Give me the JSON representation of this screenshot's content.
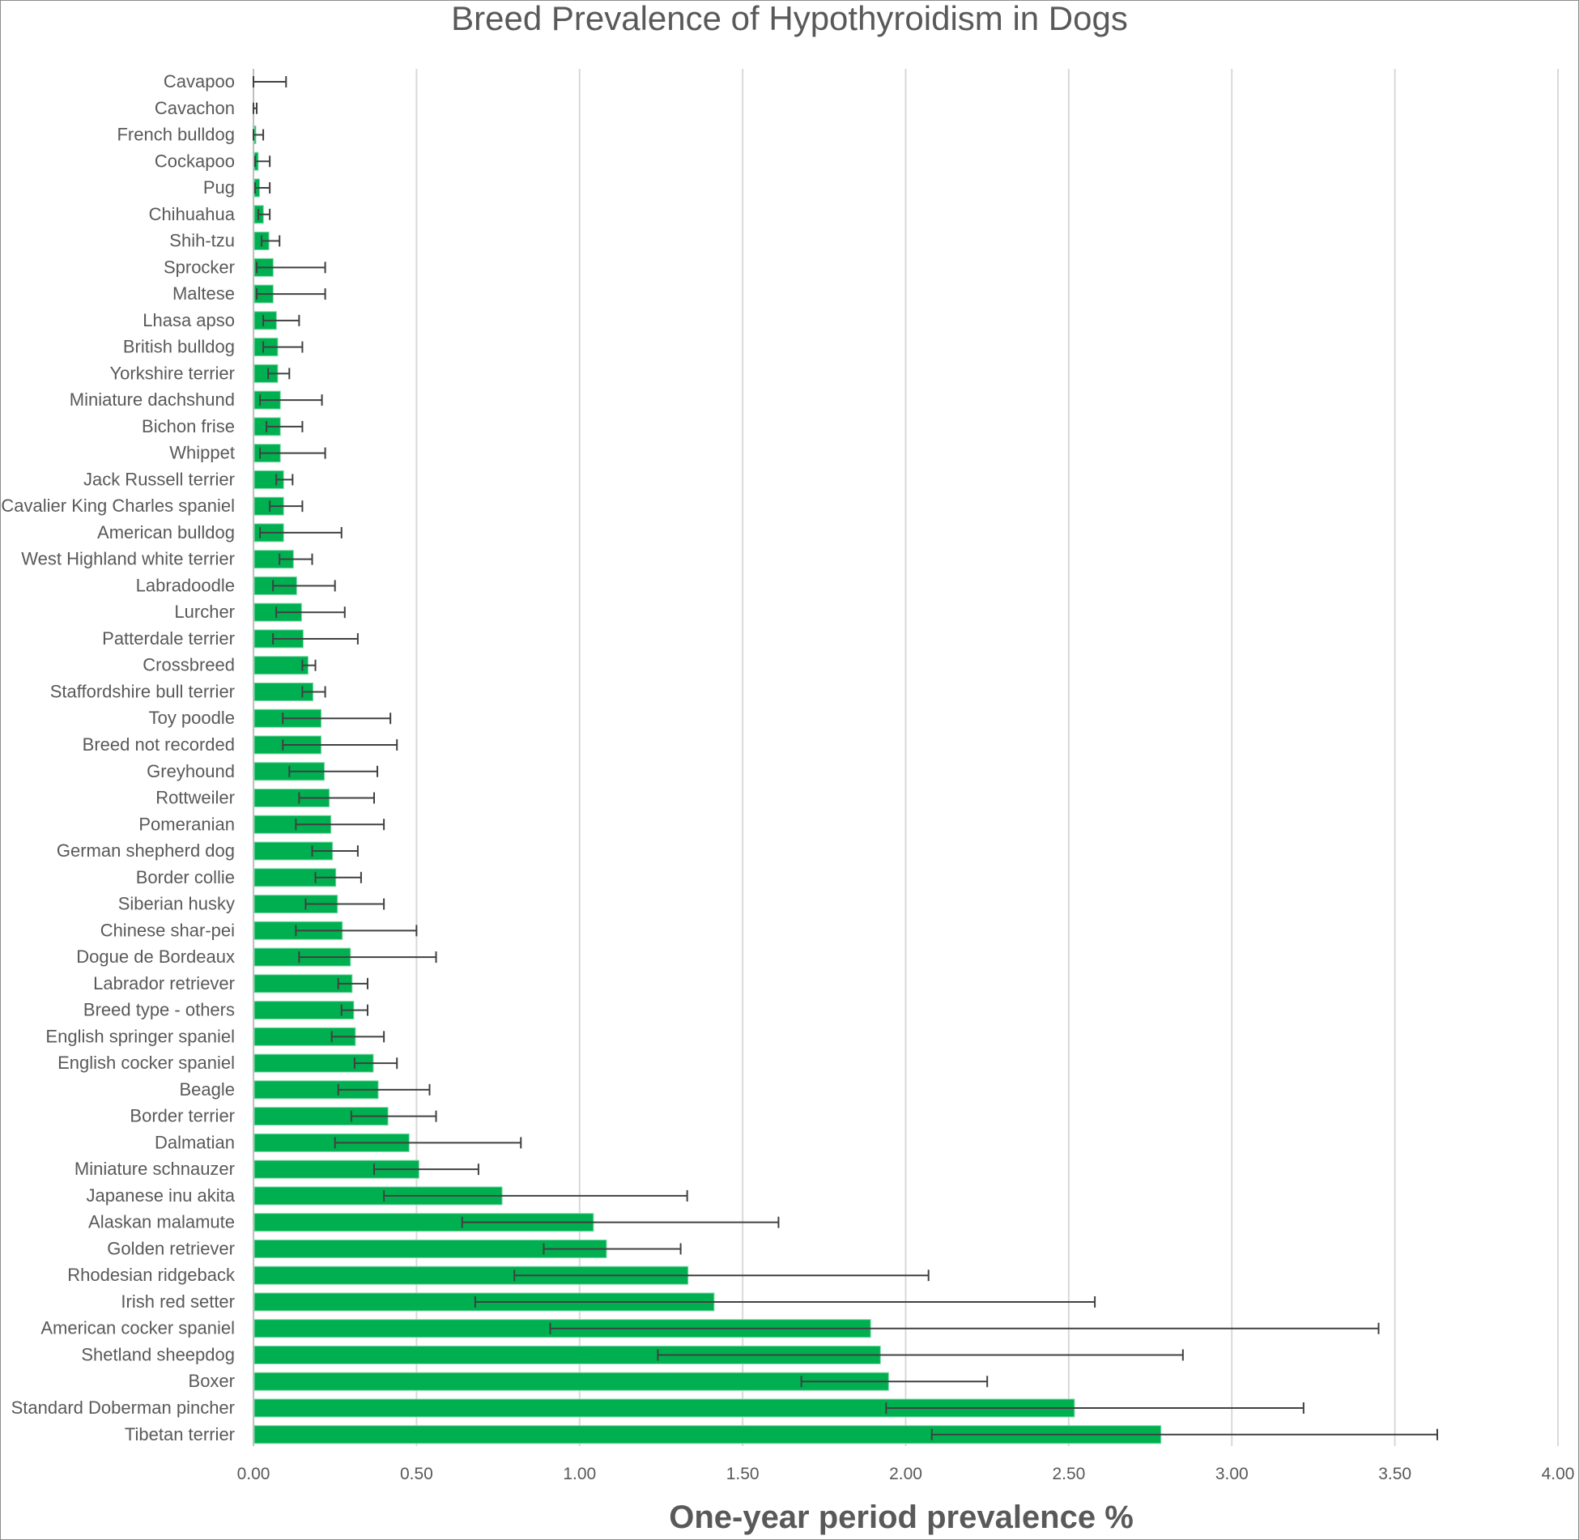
{
  "chart_data": {
    "type": "bar",
    "orientation": "horizontal",
    "title": "Breed Prevalence of Hypothyroidism in Dogs",
    "xlabel": "One-year period prevalence %",
    "ylabel": "",
    "xlim": [
      0,
      4
    ],
    "x_ticks": [
      "0.00",
      "0.50",
      "1.00",
      "1.50",
      "2.00",
      "2.50",
      "3.00",
      "3.50",
      "4.00"
    ],
    "grid": "vertical",
    "bar_color": "#00b050",
    "error_bar_color": "#404040",
    "categories": [
      "Cavapoo",
      "Cavachon",
      "French bulldog",
      "Cockapoo",
      "Pug",
      "Chihuahua",
      "Shih-tzu",
      "Sprocker",
      "Maltese",
      "Lhasa apso",
      "British bulldog",
      "Yorkshire terrier",
      "Miniature dachshund",
      "Bichon frise",
      "Whippet",
      "Jack Russell terrier",
      "Cavalier King Charles spaniel",
      "American bulldog",
      "West Highland white terrier",
      "Labradoodle",
      "Lurcher",
      "Patterdale terrier",
      "Crossbreed",
      "Staffordshire bull terrier",
      "Toy poodle",
      "Breed not recorded",
      "Greyhound",
      "Rottweiler",
      "Pomeranian",
      "German shepherd dog",
      "Border collie",
      "Siberian husky",
      "Chinese shar-pei",
      "Dogue de Bordeaux",
      "Labrador retriever",
      "Breed type - others",
      "English springer spaniel",
      "English cocker spaniel",
      "Beagle",
      "Border terrier",
      "Dalmatian",
      "Miniature schnauzer",
      "Japanese inu akita",
      "Alaskan malamute",
      "Golden retriever",
      "Rhodesian ridgeback",
      "Irish red setter",
      "American cocker spaniel",
      "Shetland sheepdog",
      "Boxer",
      "Standard Doberman pincher",
      "Tibetan terrier"
    ],
    "values": [
      0.0,
      0.0,
      0.005,
      0.012,
      0.016,
      0.028,
      0.045,
      0.058,
      0.058,
      0.068,
      0.072,
      0.072,
      0.08,
      0.08,
      0.08,
      0.09,
      0.09,
      0.09,
      0.12,
      0.13,
      0.145,
      0.15,
      0.165,
      0.18,
      0.205,
      0.205,
      0.215,
      0.23,
      0.235,
      0.24,
      0.25,
      0.255,
      0.27,
      0.295,
      0.3,
      0.305,
      0.31,
      0.365,
      0.38,
      0.41,
      0.475,
      0.505,
      0.76,
      1.04,
      1.08,
      1.33,
      1.41,
      1.89,
      1.92,
      1.945,
      2.515,
      2.78
    ],
    "ci_lower": [
      0.0,
      0.0,
      0.0,
      0.005,
      0.005,
      0.015,
      0.025,
      0.01,
      0.01,
      0.03,
      0.03,
      0.045,
      0.02,
      0.04,
      0.02,
      0.07,
      0.05,
      0.02,
      0.08,
      0.06,
      0.07,
      0.06,
      0.15,
      0.15,
      0.09,
      0.09,
      0.11,
      0.14,
      0.13,
      0.18,
      0.19,
      0.16,
      0.13,
      0.14,
      0.26,
      0.27,
      0.24,
      0.31,
      0.26,
      0.3,
      0.25,
      0.37,
      0.4,
      0.64,
      0.89,
      0.8,
      0.68,
      0.91,
      1.24,
      1.68,
      1.94,
      2.08
    ],
    "ci_upper": [
      0.1,
      0.01,
      0.03,
      0.05,
      0.05,
      0.05,
      0.08,
      0.22,
      0.22,
      0.14,
      0.15,
      0.11,
      0.21,
      0.15,
      0.22,
      0.12,
      0.15,
      0.27,
      0.18,
      0.25,
      0.28,
      0.32,
      0.19,
      0.22,
      0.42,
      0.44,
      0.38,
      0.37,
      0.4,
      0.32,
      0.33,
      0.4,
      0.5,
      0.56,
      0.35,
      0.35,
      0.4,
      0.44,
      0.54,
      0.56,
      0.82,
      0.69,
      1.33,
      1.61,
      1.31,
      2.07,
      2.58,
      3.45,
      2.85,
      2.25,
      3.22,
      3.63
    ]
  }
}
